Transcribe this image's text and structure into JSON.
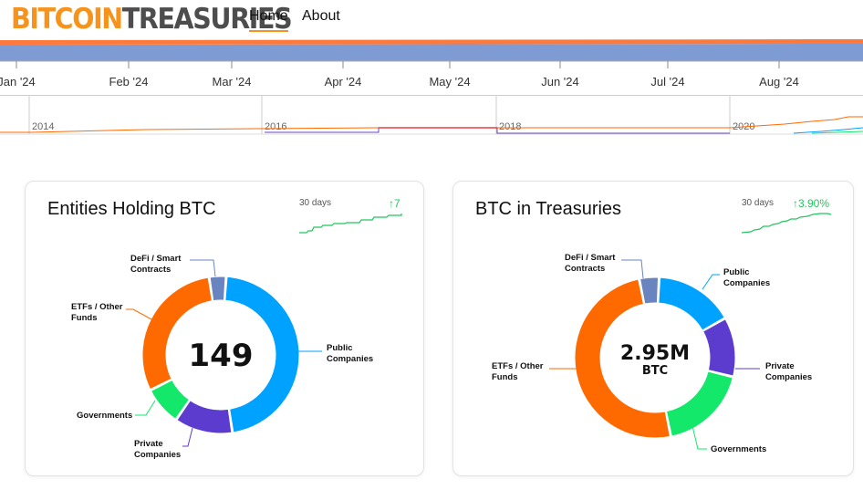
{
  "header": {
    "logo_part1": "BITCOIN",
    "logo_part2": "TREASURIES",
    "nav": {
      "home": "Home",
      "about": "About"
    }
  },
  "timeline": {
    "months": [
      "Jan '24",
      "Feb '24",
      "Mar '24",
      "Apr '24",
      "May '24",
      "Jun '24",
      "Jul '24",
      "Aug '24"
    ],
    "years": [
      "2014",
      "2016",
      "2018",
      "2020"
    ]
  },
  "colors": {
    "orange": "#ff6a00",
    "blue": "#00a2ff",
    "purple": "#5c3ccf",
    "green": "#13e86b",
    "slate": "#6a84c0",
    "trend": "#22c55e",
    "logo_orange": "#f7931a"
  },
  "cards": {
    "entities": {
      "title": "Entities Holding BTC",
      "trend_days": "30 days",
      "trend_value": "↑7",
      "center_value": "149",
      "segments": [
        {
          "label_line1": "Public",
          "label_line2": "Companies",
          "share": 0.465,
          "color": "#00a2ff"
        },
        {
          "label_line1": "Private",
          "label_line2": "Companies",
          "share": 0.12,
          "color": "#5c3ccf"
        },
        {
          "label_line1": "Governments",
          "label_line2": "",
          "share": 0.08,
          "color": "#13e86b"
        },
        {
          "label_line1": "ETFs / Other",
          "label_line2": "Funds",
          "share": 0.3,
          "color": "#ff6a00"
        },
        {
          "label_line1": "DeFi / Smart",
          "label_line2": "Contracts",
          "share": 0.035,
          "color": "#6a84c0"
        }
      ]
    },
    "btc": {
      "title": "BTC in Treasuries",
      "trend_days": "30 days",
      "trend_value": "↑3.90%",
      "center_value": "2.95M",
      "center_unit": "BTC",
      "segments": [
        {
          "label_line1": "Public",
          "label_line2": "Companies",
          "share": 0.16,
          "color": "#00a2ff"
        },
        {
          "label_line1": "Private",
          "label_line2": "Companies",
          "share": 0.12,
          "color": "#5c3ccf"
        },
        {
          "label_line1": "Governments",
          "label_line2": "",
          "share": 0.18,
          "color": "#13e86b"
        },
        {
          "label_line1": "ETFs / Other",
          "label_line2": "Funds",
          "share": 0.5,
          "color": "#ff6a00"
        },
        {
          "label_line1": "DeFi / Smart",
          "label_line2": "Contracts",
          "share": 0.04,
          "color": "#6a84c0"
        }
      ]
    }
  }
}
